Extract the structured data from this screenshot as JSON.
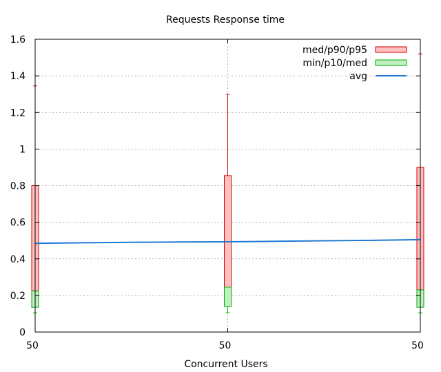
{
  "chart_data": {
    "type": "candlestick",
    "title": "Requests Response time",
    "xlabel": "Concurrent Users",
    "ylabel": "",
    "ylim": [
      0,
      1.6
    ],
    "yticks": [
      "0",
      "0.2",
      "0.4",
      "0.6",
      "0.8",
      "1",
      "1.2",
      "1.4",
      "1.6"
    ],
    "xtick_labels": [
      "50",
      "50",
      "50"
    ],
    "grid": true,
    "legend_position": "top-right",
    "legend": [
      {
        "label": "med/p90/p95",
        "kind": "box",
        "fill": "#ffc0c0",
        "stroke": "#cc0000"
      },
      {
        "label": "min/p10/med",
        "kind": "box",
        "fill": "#c0f0c0",
        "stroke": "#00aa00"
      },
      {
        "label": "avg",
        "kind": "line",
        "stroke": "#1f78d4"
      }
    ],
    "colors": {
      "upper_fill": "#ffc0c0",
      "upper_stroke": "#cc0000",
      "lower_fill": "#c0f0c0",
      "lower_stroke": "#00aa00",
      "avg": "#1f78d4",
      "grid": "#999999"
    },
    "series": [
      {
        "x": 0,
        "min": 0.105,
        "p10": 0.135,
        "med": 0.225,
        "p90": 0.8,
        "p95": 1.345
      },
      {
        "x": 1,
        "min": 0.105,
        "p10": 0.14,
        "med": 0.245,
        "p90": 0.855,
        "p95": 1.3
      },
      {
        "x": 2,
        "min": 0.105,
        "p10": 0.135,
        "med": 0.23,
        "p90": 0.9,
        "p95": 1.52
      }
    ],
    "avg_line": [
      {
        "x": 0.0,
        "y": 0.485
      },
      {
        "x": 0.25,
        "y": 0.488
      },
      {
        "x": 0.5,
        "y": 0.49
      },
      {
        "x": 0.75,
        "y": 0.492
      },
      {
        "x": 1.0,
        "y": 0.493
      },
      {
        "x": 1.25,
        "y": 0.496
      },
      {
        "x": 1.5,
        "y": 0.499
      },
      {
        "x": 1.75,
        "y": 0.501
      },
      {
        "x": 2.0,
        "y": 0.505
      }
    ]
  }
}
